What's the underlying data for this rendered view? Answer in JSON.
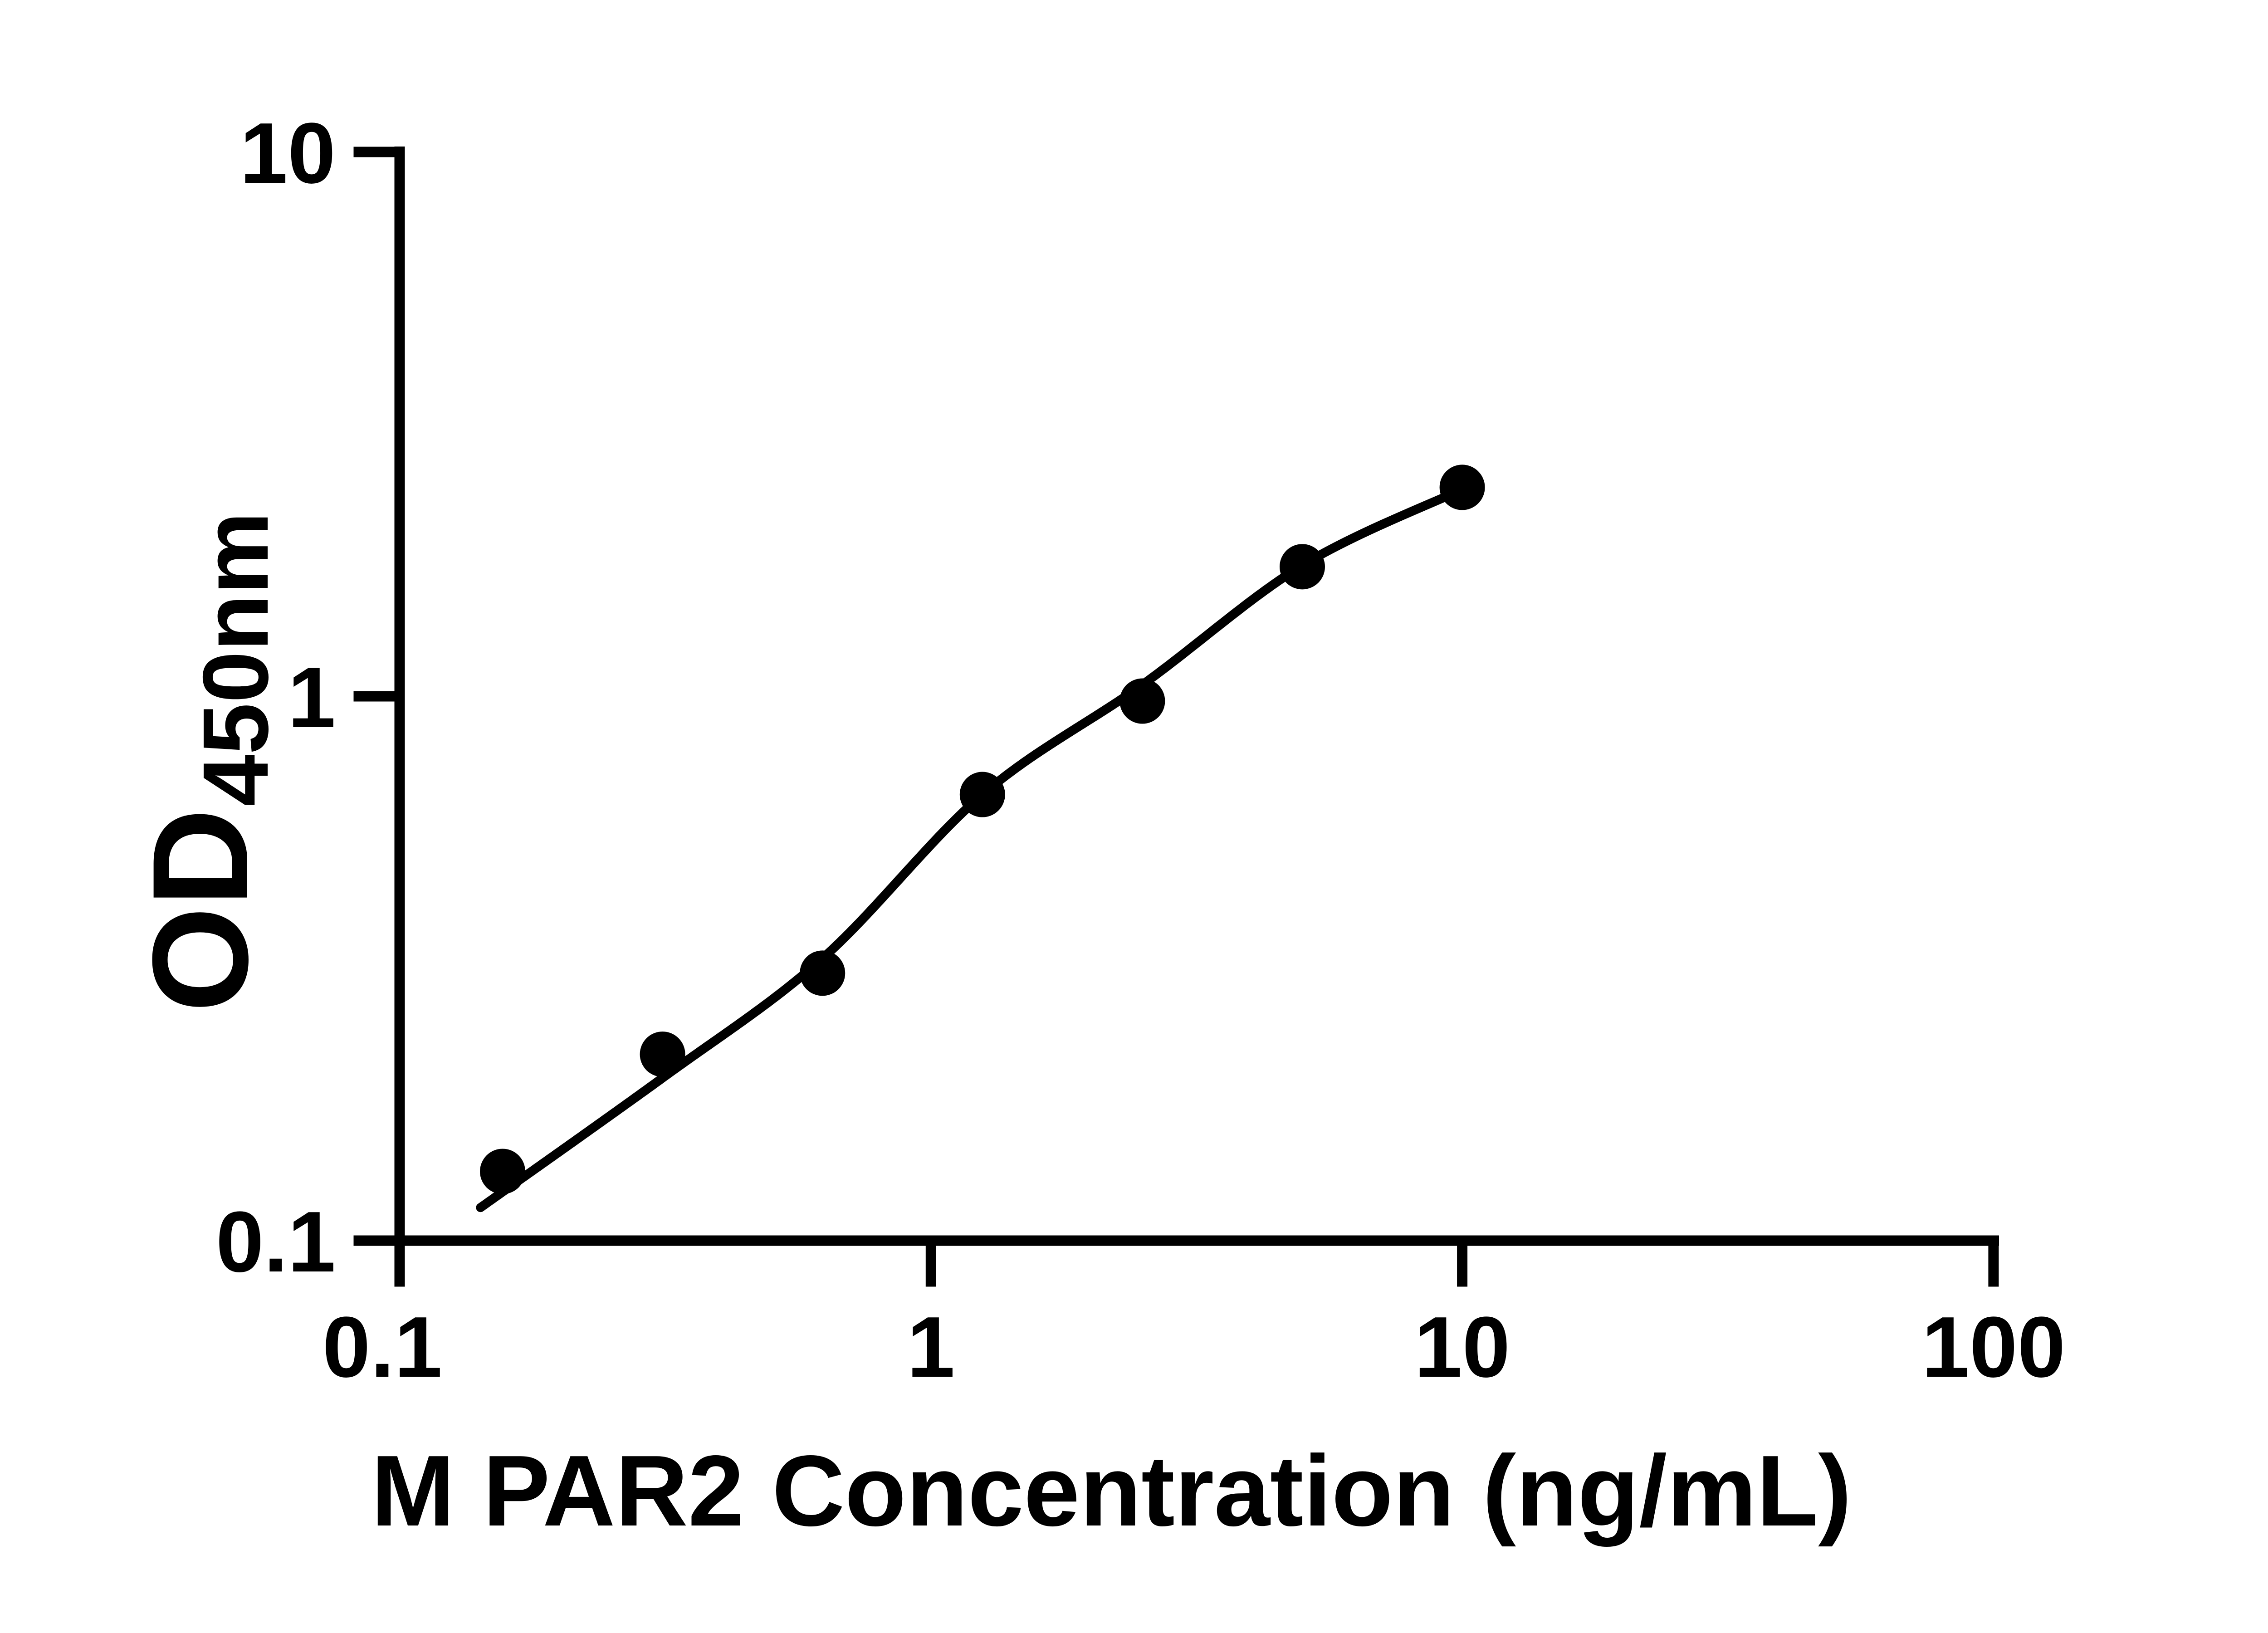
{
  "figure": {
    "background_color": "#ffffff",
    "ink_color": "#000000"
  },
  "chart_data": {
    "type": "scatter",
    "title": "",
    "xlabel": "M PAR2 Concentration (ng/mL)",
    "ylabel": "OD",
    "ylabel_subscript": "450nm",
    "x_scale": "log10",
    "y_scale": "log10",
    "xlim": [
      0.1,
      100
    ],
    "ylim": [
      0.1,
      10
    ],
    "grid": false,
    "legend": "none",
    "x_ticks": [
      {
        "value": 0.1,
        "label": "0.1"
      },
      {
        "value": 1,
        "label": "1"
      },
      {
        "value": 10,
        "label": "10"
      },
      {
        "value": 100,
        "label": "100"
      }
    ],
    "y_ticks": [
      {
        "value": 0.1,
        "label": "0.1"
      },
      {
        "value": 1,
        "label": "1"
      },
      {
        "value": 10,
        "label": "10"
      }
    ],
    "series": [
      {
        "name": "standard-points",
        "type": "scatter",
        "marker": "filled-circle",
        "color": "#000000",
        "points": [
          {
            "x": 0.15625,
            "y": 0.134
          },
          {
            "x": 0.3125,
            "y": 0.22
          },
          {
            "x": 0.625,
            "y": 0.31
          },
          {
            "x": 1.25,
            "y": 0.66
          },
          {
            "x": 2.5,
            "y": 0.98
          },
          {
            "x": 5,
            "y": 1.73
          },
          {
            "x": 10,
            "y": 2.42
          }
        ]
      },
      {
        "name": "4pl-fit-curve",
        "type": "line",
        "color": "#000000",
        "points": [
          {
            "x": 0.142,
            "y": 0.115
          },
          {
            "x": 0.3125,
            "y": 0.199
          },
          {
            "x": 0.625,
            "y": 0.33
          },
          {
            "x": 1.25,
            "y": 0.66
          },
          {
            "x": 2.5,
            "y": 1.05
          },
          {
            "x": 5,
            "y": 1.74
          },
          {
            "x": 10,
            "y": 2.4
          }
        ]
      }
    ]
  }
}
